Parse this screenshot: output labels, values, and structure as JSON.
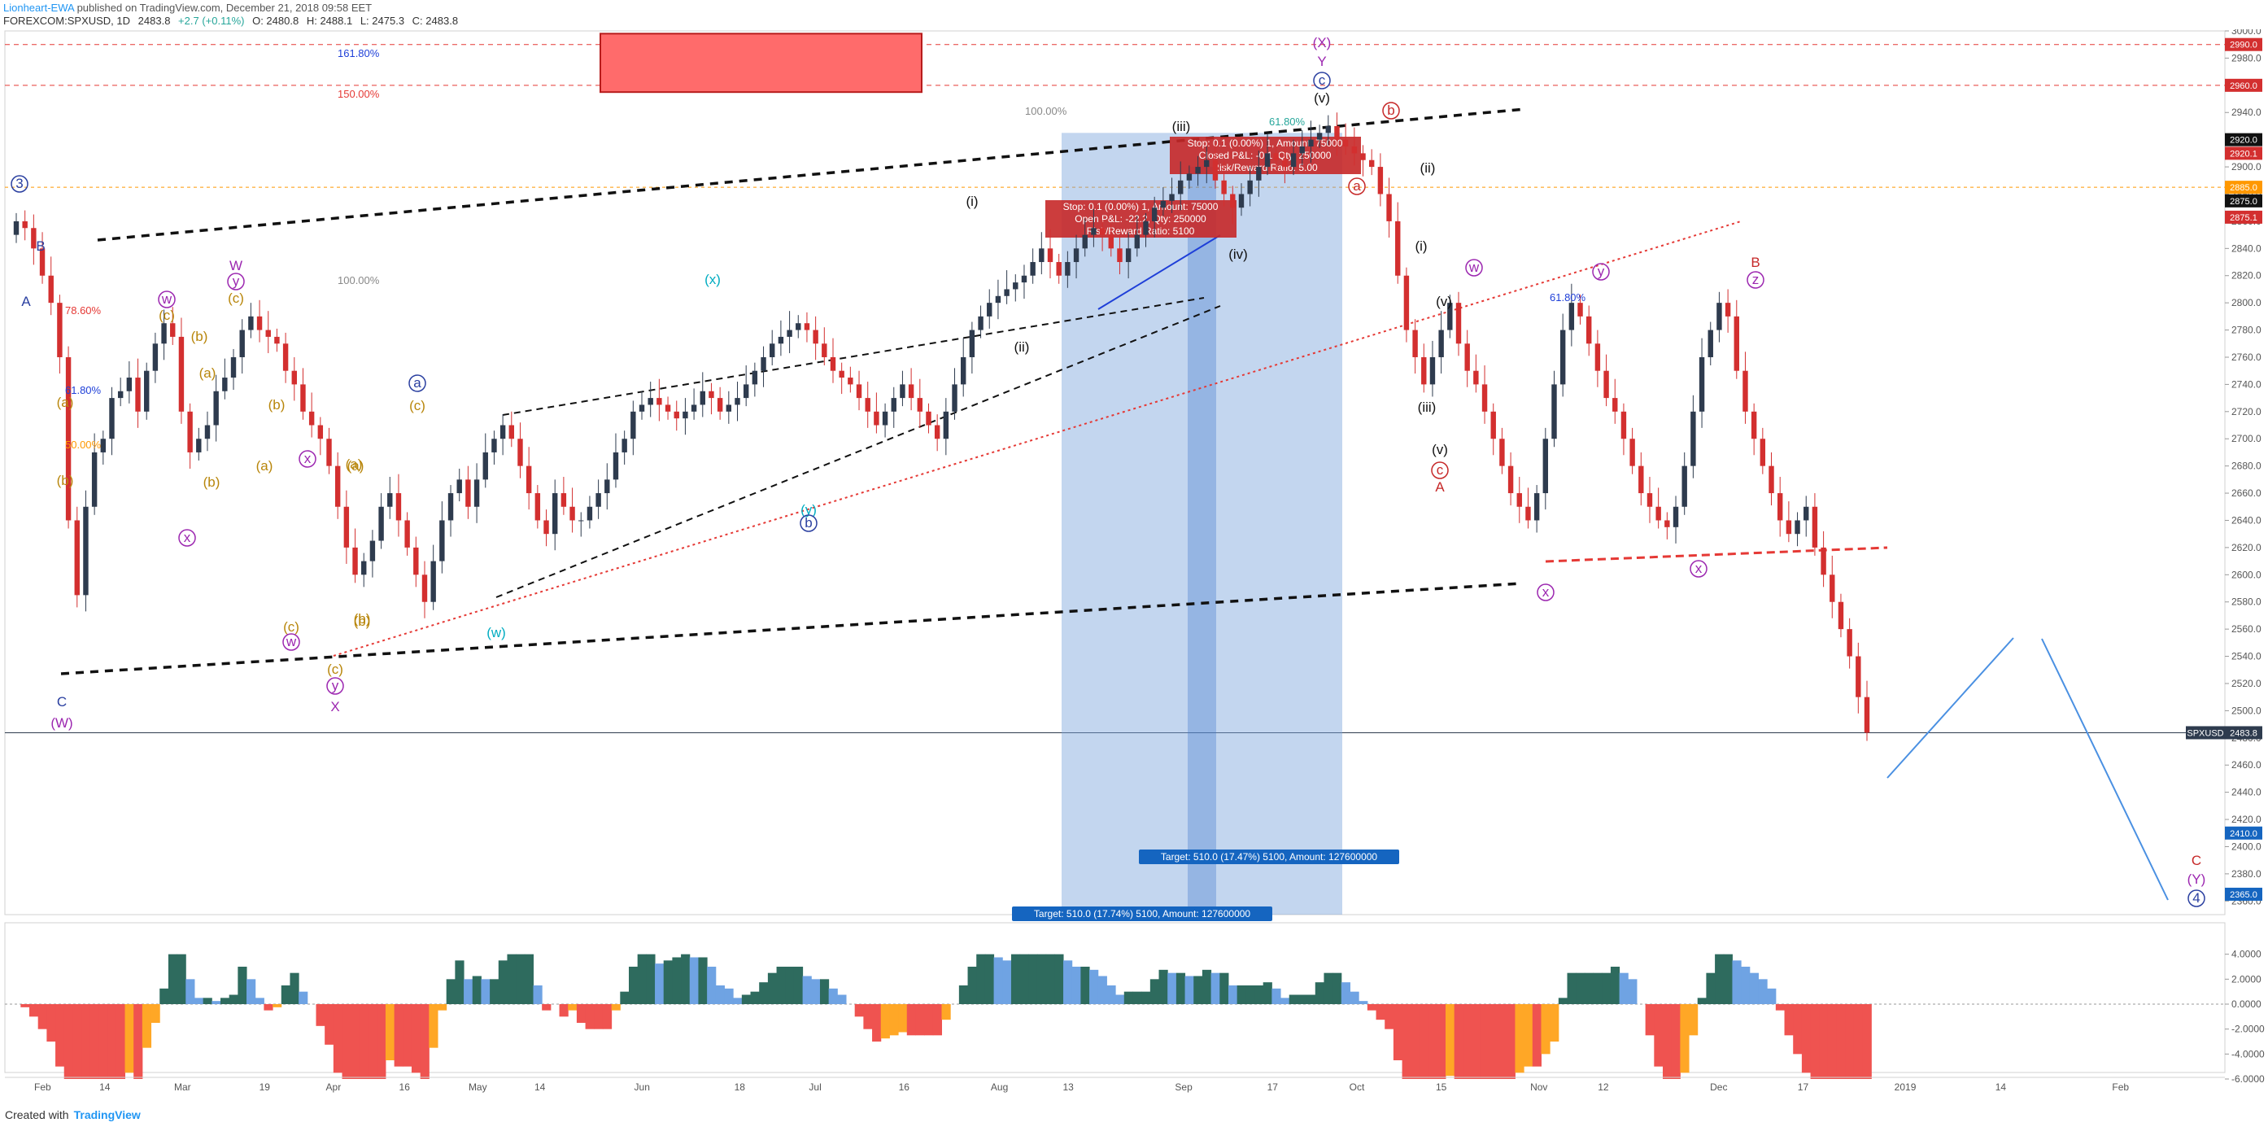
{
  "header": {
    "author": "Lionheart-EWA",
    "published": "published on TradingView.com, December 21, 2018 09:58 EET",
    "symbol": "FOREXCOM:SPXUSD, 1D",
    "last": "2483.8",
    "change": "+2.7 (+0.11%)",
    "open": "O: 2480.8",
    "high": "H: 2488.1",
    "low": "L: 2475.3",
    "close": "C: 2483.8"
  },
  "footer": {
    "created_with": "Created with",
    "brand": "TradingView"
  },
  "colors": {
    "up": "#26a69a",
    "down": "#ef5350",
    "up_body": "#2e3b4e",
    "down_body": "#d32f2f",
    "macd_blue": "#6fa3e3",
    "macd_green": "#2e6b5e",
    "macd_orange": "#ffa726",
    "macd_red": "#ef5350"
  },
  "chart_data": [
    {
      "type": "candlestick",
      "price_axis": {
        "min": 2350,
        "max": 3000,
        "ticks": [
          2360,
          2380,
          2400,
          2420,
          2440,
          2460,
          2480,
          2500,
          2520,
          2540,
          2560,
          2580,
          2600,
          2620,
          2640,
          2660,
          2680,
          2700,
          2720,
          2740,
          2760,
          2780,
          2800,
          2820,
          2840,
          2860,
          2880,
          2900,
          2920,
          2940,
          2960,
          2980,
          3000
        ],
        "tick_labels": [
          "2360.0",
          "2380.0",
          "2400.0",
          "2420.0",
          "2440.0",
          "2460.0",
          "2480.0",
          "2500.0",
          "2520.0",
          "2540.0",
          "2560.0",
          "2580.0",
          "2600.0",
          "2620.0",
          "2640.0",
          "2660.0",
          "2680.0",
          "2700.0",
          "2720.0",
          "2740.0",
          "2760.0",
          "2780.0",
          "2800.0",
          "2820.0",
          "2840.0",
          "2860.0",
          "2880.0",
          "2900.0",
          "2920.0",
          "2940.0",
          "2960.0",
          "2980.0",
          "3000.0"
        ]
      },
      "price_badges": [
        {
          "value": 2990,
          "label": "2990.0",
          "bg": "#d32f2f"
        },
        {
          "value": 2960,
          "label": "2960.0",
          "bg": "#d32f2f"
        },
        {
          "value": 2920,
          "label": "2920.0",
          "bg": "#111111"
        },
        {
          "value": 2910,
          "label": "2920.1",
          "bg": "#d32f2f"
        },
        {
          "value": 2885,
          "label": "2885.0",
          "bg": "#ff9800"
        },
        {
          "value": 2875,
          "label": "2875.0",
          "bg": "#111111"
        },
        {
          "value": 2863,
          "label": "2875.1",
          "bg": "#d32f2f"
        },
        {
          "value": 2483.8,
          "label": "2483.8",
          "bg": "#2e3b4e",
          "prefix": "SPXUSD"
        },
        {
          "value": 2410,
          "label": "2410.0",
          "bg": "#1565c0"
        },
        {
          "value": 2365,
          "label": "2365.0",
          "bg": "#1565c0"
        }
      ],
      "time_axis": {
        "labels": [
          "Feb",
          "14",
          "Mar",
          "19",
          "Apr",
          "16",
          "May",
          "14",
          "Jun",
          "18",
          "Jul",
          "16",
          "Aug",
          "13",
          "Sep",
          "17",
          "Oct",
          "15",
          "Nov",
          "12",
          "Dec",
          "17",
          "2019",
          "14",
          "Feb"
        ],
        "positions": [
          0.017,
          0.045,
          0.08,
          0.117,
          0.148,
          0.18,
          0.213,
          0.241,
          0.287,
          0.331,
          0.365,
          0.405,
          0.448,
          0.479,
          0.531,
          0.571,
          0.609,
          0.647,
          0.691,
          0.72,
          0.772,
          0.81,
          0.856,
          0.899,
          0.953
        ]
      },
      "ohlc_path_summary": "Daily SPXUSD candles, late Jan 2018 to Dec 21 2018",
      "closes": [
        2860,
        2855,
        2840,
        2820,
        2800,
        2760,
        2640,
        2585,
        2650,
        2690,
        2700,
        2730,
        2735,
        2745,
        2720,
        2750,
        2770,
        2785,
        2775,
        2720,
        2690,
        2700,
        2710,
        2735,
        2745,
        2760,
        2780,
        2790,
        2780,
        2775,
        2770,
        2750,
        2740,
        2720,
        2710,
        2700,
        2680,
        2650,
        2620,
        2600,
        2610,
        2625,
        2650,
        2660,
        2640,
        2620,
        2600,
        2580,
        2610,
        2640,
        2660,
        2670,
        2650,
        2670,
        2690,
        2700,
        2710,
        2700,
        2680,
        2660,
        2640,
        2630,
        2660,
        2650,
        2640,
        2640,
        2650,
        2660,
        2670,
        2690,
        2700,
        2720,
        2725,
        2730,
        2725,
        2720,
        2715,
        2720,
        2725,
        2735,
        2730,
        2720,
        2725,
        2730,
        2740,
        2750,
        2760,
        2770,
        2775,
        2780,
        2785,
        2780,
        2770,
        2760,
        2750,
        2745,
        2740,
        2730,
        2720,
        2710,
        2720,
        2730,
        2740,
        2730,
        2720,
        2710,
        2700,
        2720,
        2740,
        2760,
        2780,
        2790,
        2800,
        2805,
        2810,
        2815,
        2820,
        2830,
        2840,
        2830,
        2820,
        2830,
        2840,
        2850,
        2855,
        2850,
        2840,
        2830,
        2840,
        2850,
        2860,
        2870,
        2875,
        2880,
        2890,
        2895,
        2900,
        2905,
        2890,
        2880,
        2870,
        2880,
        2890,
        2900,
        2910,
        2905,
        2900,
        2910,
        2915,
        2920,
        2925,
        2930,
        2920,
        2915,
        2910,
        2905,
        2900,
        2880,
        2860,
        2820,
        2780,
        2760,
        2740,
        2760,
        2780,
        2800,
        2770,
        2750,
        2740,
        2720,
        2700,
        2680,
        2660,
        2650,
        2640,
        2660,
        2700,
        2740,
        2780,
        2800,
        2790,
        2770,
        2750,
        2730,
        2720,
        2700,
        2680,
        2660,
        2650,
        2640,
        2635,
        2650,
        2680,
        2720,
        2760,
        2780,
        2800,
        2790,
        2750,
        2720,
        2700,
        2680,
        2660,
        2640,
        2630,
        2640,
        2650,
        2620,
        2600,
        2580,
        2560,
        2540,
        2510,
        2483.8
      ],
      "macd_axis": {
        "ticks": [
          4,
          2,
          0,
          -2,
          -4,
          -6
        ],
        "tick_labels": [
          "4.0000",
          "2.0000",
          "0.0000",
          "-2.0000",
          "-4.0000",
          "-6.0000"
        ]
      },
      "annotations": {
        "position_boxes": [
          {
            "stop": "Stop: 0.1 (0.00%) 1, Amount: 75000",
            "pnl": "Closed P&L: -0.1, Qty: 250000",
            "rr": "Risk/Reward Ratio: 5.00"
          },
          {
            "stop": "Stop: 0.1 (0.00%) 1, Amount: 75000",
            "pnl": "Open P&L: -22.2, Qty: 250000",
            "rr": "Risk/Reward Ratio: 5100"
          }
        ],
        "targets": [
          "Target: 510.0 (17.47%) 5100, Amount: 127600000",
          "Target: 510.0 (17.74%) 5100, Amount: 127600000"
        ],
        "fib_labels": [
          "161.80%",
          "150.00%",
          "100.00%",
          "100.00%",
          "78.60%",
          "61.80%",
          "50.00%",
          "61.80%",
          "61.80%"
        ],
        "wave_labels": [
          {
            "t": "3",
            "c": "#2a3fa0",
            "circle": true
          },
          {
            "t": "B",
            "c": "#2a3fa0"
          },
          {
            "t": "A",
            "c": "#2a3fa0"
          },
          {
            "t": "C",
            "c": "#2a3fa0"
          },
          {
            "t": "(W)",
            "c": "#9c27b0"
          },
          {
            "t": "W",
            "c": "#9c27b0"
          },
          {
            "t": "y",
            "c": "#9c27b0",
            "circle": true
          },
          {
            "t": "(c)",
            "c": "#b8860b"
          },
          {
            "t": "w",
            "c": "#9c27b0",
            "circle": true
          },
          {
            "t": "(c)",
            "c": "#b8860b"
          },
          {
            "t": "(a)",
            "c": "#b8860b"
          },
          {
            "t": "(b)",
            "c": "#b8860b"
          },
          {
            "t": "x",
            "c": "#9c27b0",
            "circle": true
          },
          {
            "t": "(b)",
            "c": "#b8860b"
          },
          {
            "t": "(a)",
            "c": "#b8860b"
          },
          {
            "t": "(b)",
            "c": "#b8860b"
          },
          {
            "t": "x",
            "c": "#9c27b0",
            "circle": true
          },
          {
            "t": "(a)",
            "c": "#b8860b"
          },
          {
            "t": "(b)",
            "c": "#b8860b"
          },
          {
            "t": "(a)",
            "c": "#b8860b"
          },
          {
            "t": "(c)",
            "c": "#b8860b"
          },
          {
            "t": "w",
            "c": "#9c27b0",
            "circle": true
          },
          {
            "t": "(b)",
            "c": "#b8860b"
          },
          {
            "t": "(c)",
            "c": "#b8860b"
          },
          {
            "t": "y",
            "c": "#9c27b0",
            "circle": true
          },
          {
            "t": "X",
            "c": "#9c27b0"
          },
          {
            "t": "a",
            "c": "#2a3fa0",
            "circle": true
          },
          {
            "t": "(c)",
            "c": "#b8860b"
          },
          {
            "t": "(a)",
            "c": "#b8860b"
          },
          {
            "t": "(b)",
            "c": "#b8860b"
          },
          {
            "t": "(w)",
            "c": "#00acc1"
          },
          {
            "t": "(x)",
            "c": "#00acc1"
          },
          {
            "t": "(y)",
            "c": "#00acc1"
          },
          {
            "t": "b",
            "c": "#2a3fa0",
            "circle": true
          },
          {
            "t": "(X)",
            "c": "#9c27b0"
          },
          {
            "t": "Y",
            "c": "#9c27b0"
          },
          {
            "t": "c",
            "c": "#2a3fa0",
            "circle": true
          },
          {
            "t": "(v)",
            "c": "#111"
          },
          {
            "t": "(iii)",
            "c": "#111"
          },
          {
            "t": "(i)",
            "c": "#111"
          },
          {
            "t": "(ii)",
            "c": "#111"
          },
          {
            "t": "(iv)",
            "c": "#111"
          },
          {
            "t": "(ii)",
            "c": "#111"
          },
          {
            "t": "(i)",
            "c": "#111"
          },
          {
            "t": "(v)",
            "c": "#111"
          },
          {
            "t": "(iii)",
            "c": "#111"
          },
          {
            "t": "(v)",
            "c": "#111"
          },
          {
            "t": "c",
            "c": "#c62828",
            "circle": true
          },
          {
            "t": "A",
            "c": "#c62828"
          },
          {
            "t": "a",
            "c": "#c62828",
            "circle": true
          },
          {
            "t": "b",
            "c": "#c62828",
            "circle": true
          },
          {
            "t": "w",
            "c": "#9c27b0",
            "circle": true
          },
          {
            "t": "y",
            "c": "#9c27b0",
            "circle": true
          },
          {
            "t": "x",
            "c": "#9c27b0",
            "circle": true
          },
          {
            "t": "x",
            "c": "#9c27b0",
            "circle": true
          },
          {
            "t": "B",
            "c": "#c62828"
          },
          {
            "t": "z",
            "c": "#9c27b0",
            "circle": true
          },
          {
            "t": "C",
            "c": "#c62828"
          },
          {
            "t": "(Y)",
            "c": "#9c27b0"
          },
          {
            "t": "4",
            "c": "#2a3fa0",
            "circle": true
          }
        ]
      }
    }
  ]
}
